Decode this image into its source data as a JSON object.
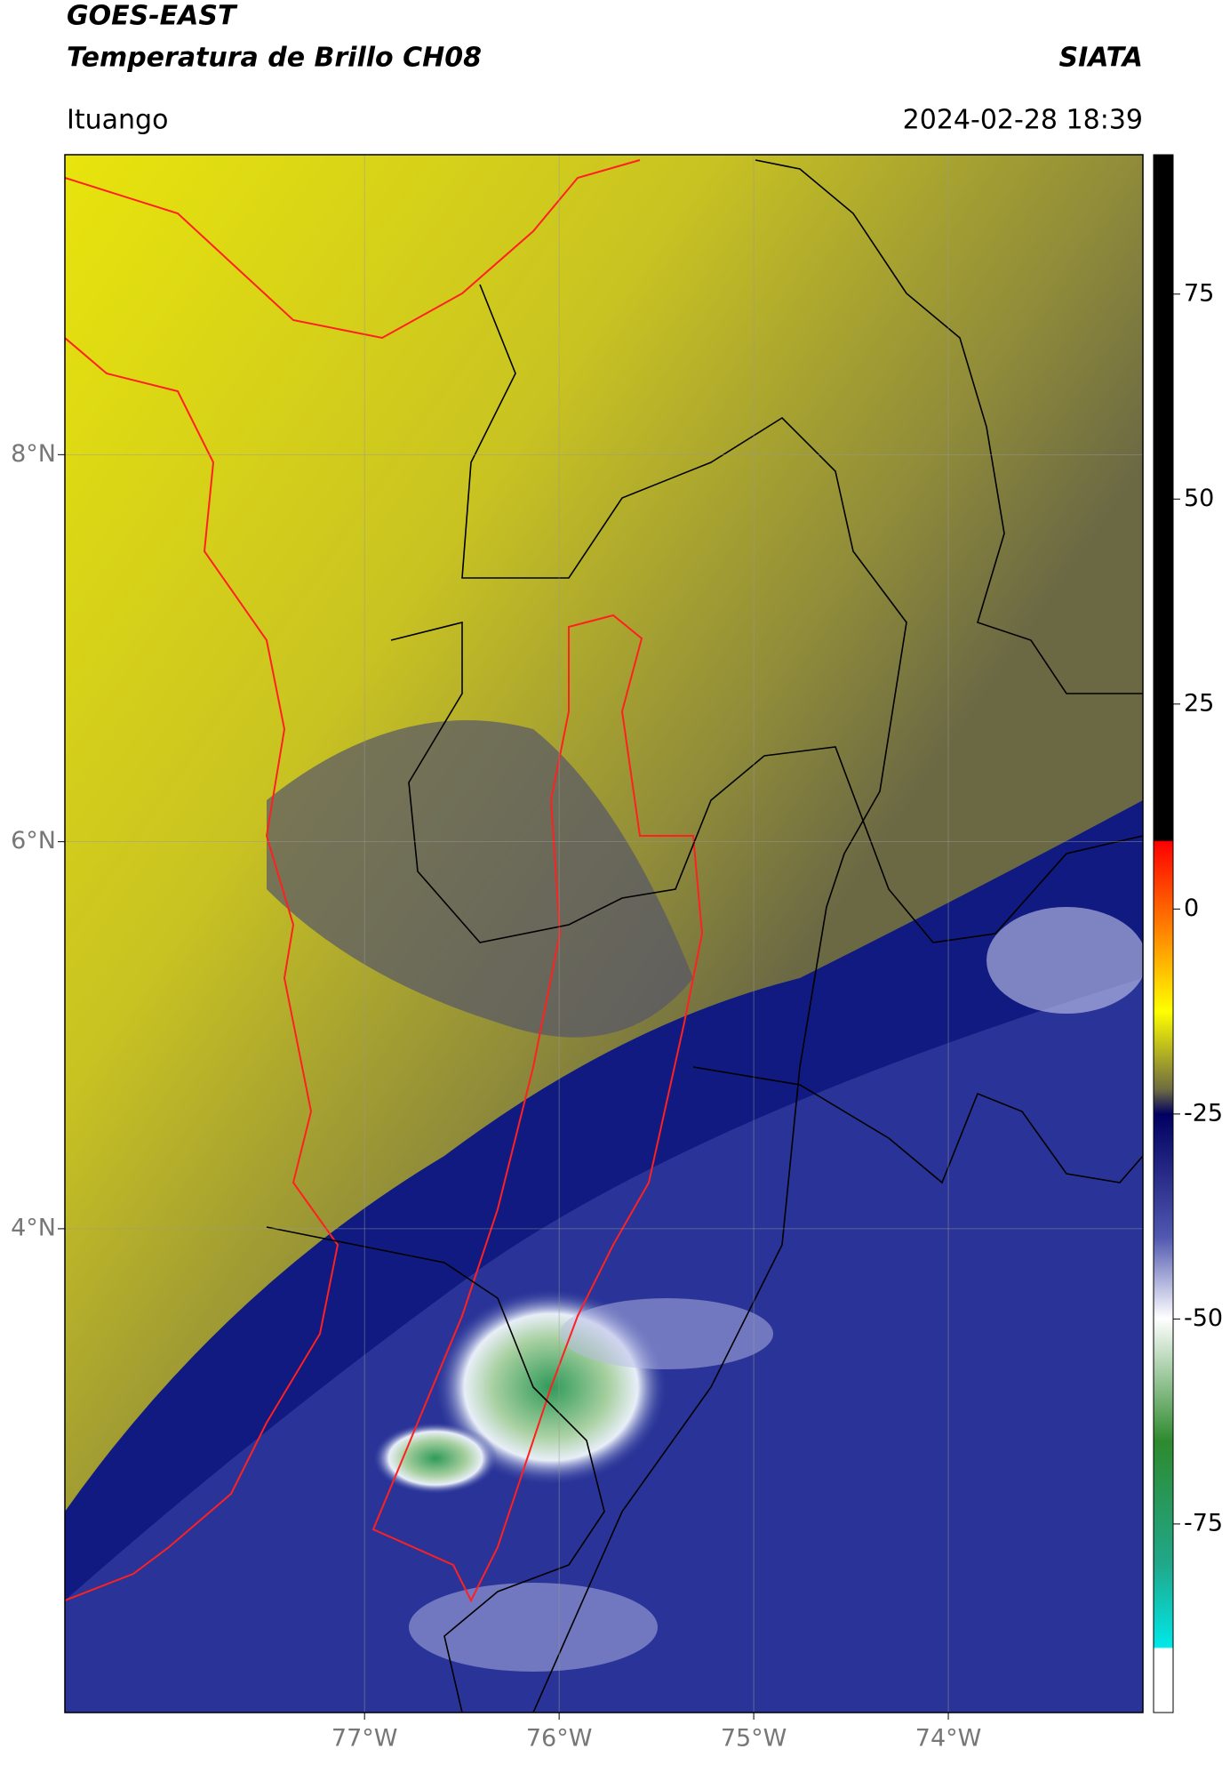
{
  "header": {
    "satellite": "GOES-EAST",
    "product": "Temperatura de Brillo CH08",
    "organization": "SIATA",
    "location": "Ituango",
    "timestamp": "2024-02-28 18:39"
  },
  "map": {
    "xlim": [
      -78.54,
      -73.0
    ],
    "ylim": [
      1.5,
      9.55
    ],
    "xticks": [
      {
        "value": -77,
        "label": "77°W"
      },
      {
        "value": -76,
        "label": "76°W"
      },
      {
        "value": -75,
        "label": "75°W"
      },
      {
        "value": -74,
        "label": "74°W"
      }
    ],
    "yticks": [
      {
        "value": 8,
        "label": "8°N"
      },
      {
        "value": 6,
        "label": "6°N"
      },
      {
        "value": 4,
        "label": "4°N"
      }
    ]
  },
  "colorbar": {
    "range": [
      -98,
      92
    ],
    "ticks": [
      75,
      50,
      25,
      0,
      -25,
      -50,
      -75
    ]
  }
}
